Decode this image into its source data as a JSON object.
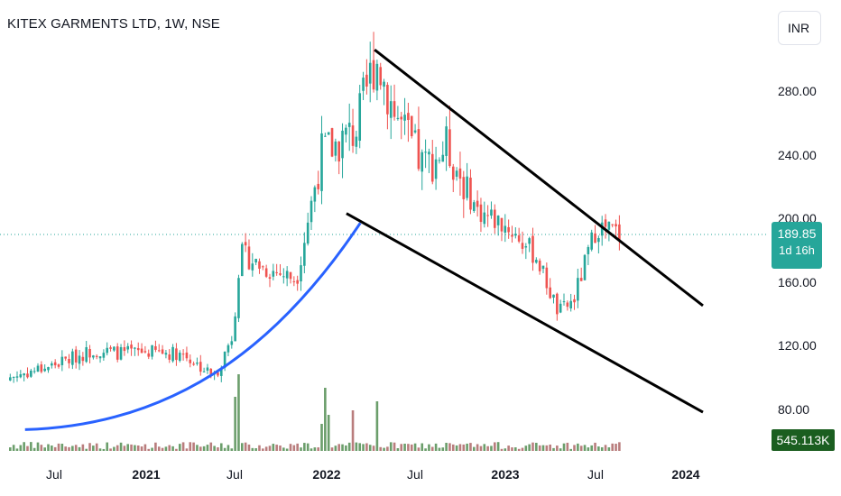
{
  "header": {
    "title": "KITEX GARMENTS LTD, 1W, NSE",
    "currency": "INR"
  },
  "y_axis": {
    "ticks": [
      "280.00",
      "240.00",
      "200.00",
      "160.00",
      "120.00",
      "80.00"
    ]
  },
  "x_axis": {
    "ticks": [
      {
        "label": "Jul",
        "bold": false
      },
      {
        "label": "2021",
        "bold": true
      },
      {
        "label": "Jul",
        "bold": false
      },
      {
        "label": "2022",
        "bold": true
      },
      {
        "label": "Jul",
        "bold": false
      },
      {
        "label": "2023",
        "bold": true
      },
      {
        "label": "Jul",
        "bold": false
      },
      {
        "label": "2024",
        "bold": true
      }
    ]
  },
  "price_badge": {
    "price": "189.85",
    "countdown": "1d 16h",
    "color": "#26a69a"
  },
  "volume_badge": {
    "value": "545.113K",
    "color": "#1b5e20"
  },
  "colors": {
    "up": "#26a69a",
    "down": "#ef5350",
    "curve": "#2962ff",
    "trendline": "#000000",
    "price_line": "#26a69a",
    "volume_up": "#6b9e6b",
    "volume_down": "#b97d7d"
  },
  "chart_data": {
    "type": "candlestick",
    "title": "KITEX GARMENTS LTD, 1W, NSE",
    "ylim": [
      60,
      320
    ],
    "y_ticks": [
      80,
      120,
      160,
      200,
      240,
      280
    ],
    "last_price": 189.85,
    "volume_last": "545.113K",
    "series": [
      {
        "name": "price",
        "anchors": [
          {
            "date": "2020-07-01",
            "value": 108
          },
          {
            "date": "2020-09-15",
            "value": 117
          },
          {
            "date": "2020-11-15",
            "value": 115
          },
          {
            "date": "2021-01-01",
            "value": 116
          },
          {
            "date": "2021-03-15",
            "value": 115
          },
          {
            "date": "2021-05-20",
            "value": 100
          },
          {
            "date": "2021-06-25",
            "value": 127
          },
          {
            "date": "2021-07-10",
            "value": 178
          },
          {
            "date": "2021-09-01",
            "value": 168
          },
          {
            "date": "2021-11-01",
            "value": 162
          },
          {
            "date": "2021-12-20",
            "value": 240
          },
          {
            "date": "2022-03-01",
            "value": 255
          },
          {
            "date": "2022-04-10",
            "value": 302
          },
          {
            "date": "2022-05-20",
            "value": 265
          },
          {
            "date": "2022-07-15",
            "value": 232
          },
          {
            "date": "2022-09-01",
            "value": 245
          },
          {
            "date": "2022-11-01",
            "value": 205
          },
          {
            "date": "2023-01-01",
            "value": 195
          },
          {
            "date": "2023-03-01",
            "value": 176
          },
          {
            "date": "2023-04-15",
            "value": 140
          },
          {
            "date": "2023-05-15",
            "value": 148
          },
          {
            "date": "2023-07-01",
            "value": 195
          },
          {
            "date": "2023-08-20",
            "value": 189.85
          }
        ]
      }
    ],
    "annotations": [
      {
        "type": "trendline",
        "from": {
          "date": "2022-04-08",
          "value": 306
        },
        "to": {
          "date": "2024-02-01",
          "value": 145
        }
      },
      {
        "type": "trendline",
        "from": {
          "date": "2022-02-10",
          "value": 203
        },
        "to": {
          "date": "2024-02-01",
          "value": 78
        }
      },
      {
        "type": "curve",
        "from": {
          "date": "2020-05-01",
          "value": 67
        },
        "to": {
          "date": "2022-03-10",
          "value": 197
        }
      }
    ]
  }
}
